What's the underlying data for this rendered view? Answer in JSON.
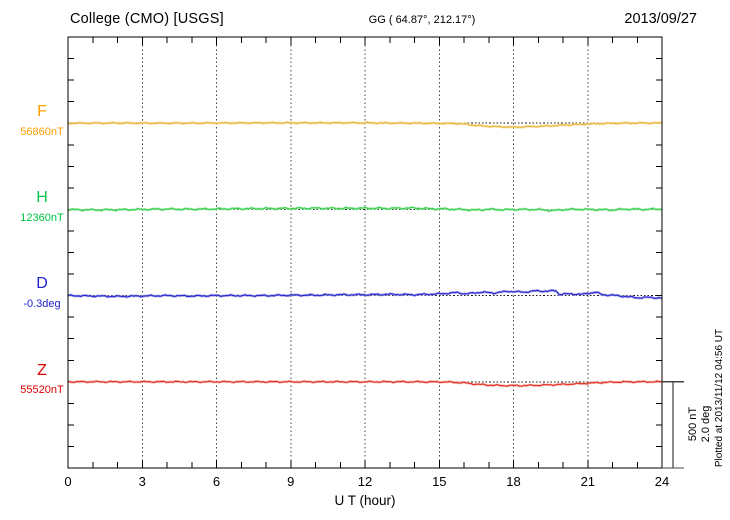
{
  "header": {
    "title": "College (CMO)  [USGS]",
    "coords": "GG ( 64.87°, 212.17°)",
    "date": "2013/09/27"
  },
  "footer": {
    "xlabel": "U T (hour)",
    "plotted_at": "Plotted at 2013/11/12 04:56 UT"
  },
  "scale_bar": {
    "nt_label": "500 nT",
    "deg_label": "2.0 deg"
  },
  "chart_data": {
    "type": "line",
    "title": "College (CMO) [USGS] magnetogram",
    "xlabel": "U T (hour)",
    "xlim": [
      0,
      24
    ],
    "xticks": [
      0,
      3,
      6,
      9,
      12,
      15,
      18,
      21,
      24
    ],
    "grid": "dotted vertical gridlines every 3 h; dotted horizontal baseline for each trace",
    "legend_position": "left margin component labels",
    "vertical_scale": {
      "nT_per_bar": 500,
      "deg_per_bar": 2.0,
      "bar_label": "500 nT / 2.0 deg"
    },
    "series": [
      {
        "name": "F",
        "baseline_label": "56860nT",
        "baseline_value": 56860,
        "unit": "nT",
        "color": "#FF9E00",
        "trace_color": "#EBB53E",
        "halo": "#F7DC96",
        "jitter": 0.7,
        "points": [
          [
            0,
            0
          ],
          [
            2,
            1
          ],
          [
            4,
            0
          ],
          [
            6,
            1
          ],
          [
            8,
            2
          ],
          [
            10,
            2
          ],
          [
            12,
            2
          ],
          [
            13,
            1
          ],
          [
            14,
            0
          ],
          [
            15,
            -1
          ],
          [
            15.8,
            -2
          ],
          [
            16.3,
            -10
          ],
          [
            16.8,
            -17
          ],
          [
            17.3,
            -20
          ],
          [
            18,
            -23
          ],
          [
            18.6,
            -20
          ],
          [
            19.2,
            -17
          ],
          [
            19.8,
            -13
          ],
          [
            20.3,
            -9
          ],
          [
            21,
            -5
          ],
          [
            21.6,
            -2
          ],
          [
            22.2,
            0
          ],
          [
            23,
            1
          ],
          [
            24,
            1
          ]
        ]
      },
      {
        "name": "H",
        "baseline_label": "12360nT",
        "baseline_value": 12360,
        "unit": "nT",
        "color": "#00C846",
        "trace_color": "#37D14E",
        "halo": "#A6EBAE",
        "jitter": 1.0,
        "points": [
          [
            0,
            -1
          ],
          [
            1,
            -3
          ],
          [
            2,
            -2
          ],
          [
            3,
            0
          ],
          [
            4,
            2
          ],
          [
            5,
            1
          ],
          [
            6,
            3
          ],
          [
            7,
            4
          ],
          [
            8,
            5
          ],
          [
            9,
            6
          ],
          [
            10,
            7
          ],
          [
            11,
            6
          ],
          [
            12,
            7
          ],
          [
            13,
            6
          ],
          [
            14,
            8
          ],
          [
            14.6,
            4
          ],
          [
            15.2,
            3
          ],
          [
            16,
            -1
          ],
          [
            16.5,
            -4
          ],
          [
            17,
            1
          ],
          [
            17.6,
            -2
          ],
          [
            18.2,
            0
          ],
          [
            19,
            -1
          ],
          [
            19.6,
            -7
          ],
          [
            20,
            -1
          ],
          [
            20.6,
            1
          ],
          [
            21.2,
            -1
          ],
          [
            22,
            -3
          ],
          [
            22.6,
            2
          ],
          [
            23.2,
            0
          ],
          [
            24,
            2
          ]
        ]
      },
      {
        "name": "D",
        "baseline_label": "-0.3deg",
        "baseline_value": -0.3,
        "unit": "deg",
        "color": "#2222CC",
        "trace_color": "#2B2BD0",
        "halo": "#9C9CE4",
        "jitter": 0.9,
        "points": [
          [
            0,
            0
          ],
          [
            1,
            -0.01
          ],
          [
            2,
            -0.02
          ],
          [
            3,
            -0.01
          ],
          [
            4,
            0
          ],
          [
            5,
            -0.01
          ],
          [
            6,
            0
          ],
          [
            7,
            0
          ],
          [
            8,
            0
          ],
          [
            9,
            0.01
          ],
          [
            10,
            0.01
          ],
          [
            11,
            0.02
          ],
          [
            12,
            0.02
          ],
          [
            13,
            0.03
          ],
          [
            14,
            0.02
          ],
          [
            15,
            0.04
          ],
          [
            15.7,
            0.07
          ],
          [
            16.1,
            0.04
          ],
          [
            16.7,
            0.08
          ],
          [
            17.2,
            0.06
          ],
          [
            17.8,
            0.1
          ],
          [
            18.4,
            0.08
          ],
          [
            18.9,
            0.11
          ],
          [
            19.4,
            0.1
          ],
          [
            19.7,
            0.12
          ],
          [
            19.85,
            0.03
          ],
          [
            20.3,
            0.04
          ],
          [
            20.8,
            0.03
          ],
          [
            21.3,
            0.08
          ],
          [
            21.6,
            0.02
          ],
          [
            22,
            0.01
          ],
          [
            22.5,
            -0.02
          ],
          [
            23,
            -0.05
          ],
          [
            23.5,
            -0.04
          ],
          [
            24,
            -0.06
          ]
        ]
      },
      {
        "name": "Z",
        "baseline_label": "55520nT",
        "baseline_value": 55520,
        "unit": "nT",
        "color": "#E00000",
        "trace_color": "#E23227",
        "halo": "#F6ACA6",
        "jitter": 0.8,
        "points": [
          [
            0,
            0
          ],
          [
            2,
            0
          ],
          [
            4,
            0
          ],
          [
            6,
            0
          ],
          [
            8,
            0
          ],
          [
            10,
            0
          ],
          [
            12,
            0
          ],
          [
            14,
            0
          ],
          [
            15.3,
            -1
          ],
          [
            16,
            -6
          ],
          [
            16.5,
            -14
          ],
          [
            17,
            -19
          ],
          [
            17.6,
            -22
          ],
          [
            18.3,
            -22
          ],
          [
            19,
            -20
          ],
          [
            19.6,
            -17
          ],
          [
            20.2,
            -14
          ],
          [
            20.8,
            -10
          ],
          [
            21.3,
            -6
          ],
          [
            21.8,
            -3
          ],
          [
            22.3,
            -1
          ],
          [
            23,
            0
          ],
          [
            24,
            0
          ]
        ]
      }
    ]
  }
}
